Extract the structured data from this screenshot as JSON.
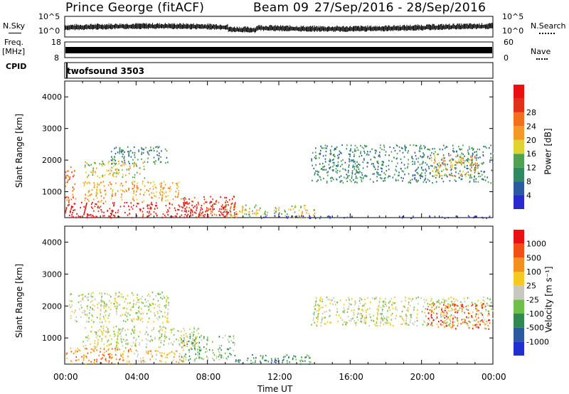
{
  "header": {
    "station": "Prince George (fitACF)",
    "beam": "Beam 09",
    "date_range": "27/Sep/2016 - 28/Sep/2016"
  },
  "strips": {
    "nsky_label": "N.Sky",
    "nsky_ticks": [
      "10^5",
      "10^0"
    ],
    "nsearch_label": "N.Search",
    "freq_label_1": "Freq.",
    "freq_label_2": "[MHz]",
    "freq_ticks": [
      "18",
      "8"
    ],
    "nave_label": "Nave",
    "nave_ticks": [
      "60",
      "0"
    ],
    "cpid_label": "CPID",
    "cpid_value": "twofsound 3503",
    "nsearch_ticks": [
      "10^5",
      "10^0"
    ]
  },
  "chart_data": [
    {
      "type": "heatmap",
      "name": "power",
      "ylabel": "Slant Range [km]",
      "xlabel": "",
      "ylim": [
        180,
        4500
      ],
      "xlim": [
        0,
        24
      ],
      "colorbar_label": "Power [dB]",
      "colorbar_ticks": [
        "4",
        "8",
        "12",
        "16",
        "20",
        "24",
        "28"
      ],
      "colors": [
        "#2a2acc",
        "#2c5aa0",
        "#2e8a60",
        "#4fa24f",
        "#e0d230",
        "#f29a28",
        "#f07020",
        "#e03018",
        "#e81010"
      ],
      "regions": [
        {
          "t0": 0.0,
          "t1": 9.6,
          "r0": 200,
          "r1": 700,
          "level": 8
        },
        {
          "t0": 1.0,
          "t1": 6.5,
          "r0": 700,
          "r1": 1350,
          "level": 5
        },
        {
          "t0": 0.0,
          "t1": 0.6,
          "r0": 700,
          "r1": 1800,
          "level": 6
        },
        {
          "t0": 1.0,
          "t1": 4.5,
          "r0": 1450,
          "r1": 2000,
          "level": 4
        },
        {
          "t0": 2.5,
          "t1": 5.8,
          "r0": 1900,
          "r1": 2450,
          "level": 2
        },
        {
          "t0": 6.5,
          "t1": 9.5,
          "r0": 250,
          "r1": 900,
          "level": 7
        },
        {
          "t0": 9.0,
          "t1": 14.0,
          "r0": 200,
          "r1": 600,
          "level": 4
        },
        {
          "t0": 13.8,
          "t1": 24.0,
          "r0": 1300,
          "r1": 2500,
          "level": 2
        },
        {
          "t0": 20.5,
          "t1": 23.2,
          "r0": 1500,
          "r1": 2200,
          "level": 5
        },
        {
          "t0": 10.0,
          "t1": 24.0,
          "r0": 180,
          "r1": 260,
          "level": 0
        }
      ]
    },
    {
      "type": "heatmap",
      "name": "velocity",
      "ylabel": "Slant Range [km]",
      "xlabel": "Time UT",
      "ylim": [
        180,
        4500
      ],
      "xlim": [
        0,
        24
      ],
      "x_ticks": [
        "00:00",
        "04:00",
        "08:00",
        "12:00",
        "16:00",
        "20:00",
        "00:00"
      ],
      "y_ticks": [
        "1000",
        "2000",
        "3000",
        "4000"
      ],
      "colorbar_label": "Velocity [m s⁻¹]",
      "colorbar_ticks": [
        "1000",
        "500",
        "100",
        "25",
        "-25",
        "-100",
        "-500",
        "-1000"
      ],
      "colors": [
        "#2030d0",
        "#2c5aa0",
        "#2e8a50",
        "#6cc04a",
        "#c8c8c0",
        "#f6c820",
        "#f09020",
        "#f05018",
        "#e81010"
      ],
      "regions": [
        {
          "t0": 0.0,
          "t1": 3.8,
          "r0": 200,
          "r1": 700,
          "level": 6
        },
        {
          "t0": 3.8,
          "t1": 6.8,
          "r0": 250,
          "r1": 650,
          "level": 5
        },
        {
          "t0": 1.0,
          "t1": 7.5,
          "r0": 700,
          "r1": 1400,
          "level": 4
        },
        {
          "t0": 0.2,
          "t1": 5.8,
          "r0": 1500,
          "r1": 2450,
          "level": 4
        },
        {
          "t0": 6.5,
          "t1": 9.5,
          "r0": 300,
          "r1": 1100,
          "level": 3
        },
        {
          "t0": 9.5,
          "t1": 14.0,
          "r0": 200,
          "r1": 500,
          "level": 2
        },
        {
          "t0": 13.8,
          "t1": 24.0,
          "r0": 1400,
          "r1": 2300,
          "level": 4
        },
        {
          "t0": 20.3,
          "t1": 23.8,
          "r0": 1300,
          "r1": 2100,
          "level": 7
        }
      ]
    }
  ]
}
